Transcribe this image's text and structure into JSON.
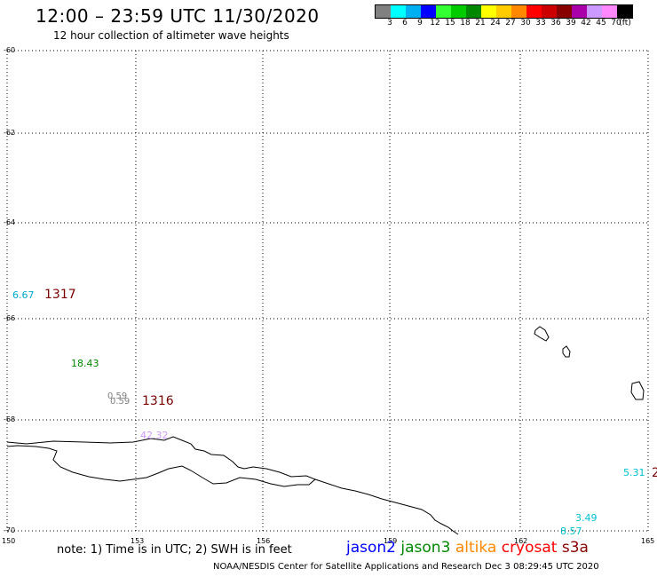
{
  "title": "12:00 – 23:59 UTC 11/30/2020",
  "subtitle": "12 hour collection of altimeter wave heights",
  "legend": {
    "colors": [
      "#808080",
      "#00ffff",
      "#00b0f0",
      "#0000ff",
      "#33ff33",
      "#00cc00",
      "#008800",
      "#ffff00",
      "#ffcc00",
      "#ff8800",
      "#ff0000",
      "#cc0000",
      "#880000",
      "#aa00aa",
      "#cc99ff",
      "#ff88ff",
      "#000000"
    ],
    "labels": [
      "3",
      "6",
      "9",
      "12",
      "15",
      "18",
      "21",
      "24",
      "27",
      "30",
      "33",
      "36",
      "39",
      "42",
      "45",
      "70",
      "(ft)"
    ]
  },
  "axes": {
    "lat_labels": [
      "-60",
      "-62",
      "-64",
      "-66",
      "-68",
      "-70"
    ],
    "lon_labels": [
      "150",
      "153",
      "156",
      "159",
      "162",
      "165"
    ]
  },
  "observations": [
    {
      "text": "6.67",
      "color": "#00a8d0"
    },
    {
      "text": "18.43",
      "color": "#008800"
    },
    {
      "text": "0.59",
      "color": "#808080"
    },
    {
      "text": "0.59",
      "color": "#808080"
    },
    {
      "text": "42.32",
      "color": "#cc99ff"
    },
    {
      "text": "5.31",
      "color": "#00c0d0"
    },
    {
      "text": "3.49",
      "color": "#00c0d0"
    },
    {
      "text": "8.57",
      "color": "#00c0d0"
    }
  ],
  "passes": [
    "1317",
    "1316",
    "2"
  ],
  "note": "note: 1) Time is in UTC; 2) SWH is in feet",
  "satellites": [
    {
      "name": "jason2",
      "color": "#0000ff"
    },
    {
      "name": "jason3",
      "color": "#008800"
    },
    {
      "name": "altika",
      "color": "#ff8800"
    },
    {
      "name": "cryosat",
      "color": "#ff0000"
    },
    {
      "name": "s3a",
      "color": "#880000"
    }
  ],
  "credit": "NOAA/NESDIS Center for Satellite Applications and Research    Dec  3 08:29:45 UTC 2020"
}
